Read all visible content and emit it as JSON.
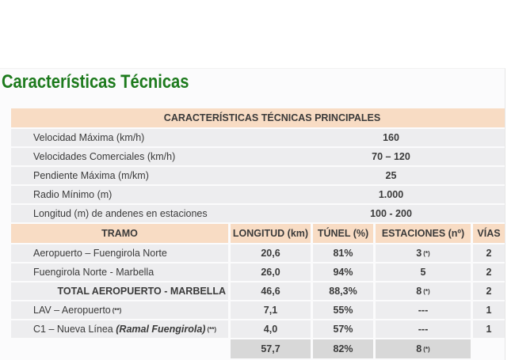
{
  "page": {
    "title": "Características Técnicas"
  },
  "colors": {
    "title_green": "#1d7a1d",
    "header_peach": "#f8dcc4",
    "row_gray": "#ededef",
    "total_gray": "#d8d8d8",
    "text": "#3a3a3a"
  },
  "table": {
    "main_header": "CARACTERÍSTICAS TÉCNICAS PRINCIPALES",
    "specs": [
      {
        "label": "Velocidad Máxima (km/h)",
        "value": "160"
      },
      {
        "label": "Velocidades Comerciales (km/h)",
        "value": "70 – 120"
      },
      {
        "label": "Pendiente Máxima (m/km)",
        "value": "25"
      },
      {
        "label": "Radio Mínimo (m)",
        "value": "1.000"
      },
      {
        "label": "Longitud (m) de andenes en estaciones",
        "value": "100 - 200"
      }
    ],
    "columns": {
      "tramo": "TRAMO",
      "longitud": "LONGITUD (km)",
      "tunel": "TÚNEL (%)",
      "estaciones": "ESTACIONES (nº)",
      "vias": "VÍAS"
    },
    "rows": [
      {
        "tramo": "Aeropuerto – Fuengirola Norte",
        "longitud": "20,6",
        "tunel": "81%",
        "estaciones": "3",
        "estaciones_sup": "(*)",
        "vias": "2"
      },
      {
        "tramo": "Fuengirola Norte - Marbella",
        "longitud": "26,0",
        "tunel": "94%",
        "estaciones": "5",
        "vias": "2"
      },
      {
        "tramo": "TOTAL AEROPUERTO - MARBELLA",
        "longitud": "46,6",
        "tunel": "88,3%",
        "estaciones": "8",
        "estaciones_sup": "(*)",
        "vias": "2"
      },
      {
        "tramo": "LAV – Aeropuerto",
        "tramo_sup": "(**)",
        "longitud": "7,1",
        "tunel": "55%",
        "estaciones": "---",
        "vias": "1"
      },
      {
        "tramo": "C1 – Nueva Línea ",
        "tramo_italic": "(Ramal Fuengirola)",
        "tramo_sup": "(**)",
        "longitud": "4,0",
        "tunel": "57%",
        "estaciones": "---",
        "vias": "1"
      }
    ],
    "total_row": {
      "longitud": "57,7",
      "tunel": "82%",
      "estaciones": "8",
      "estaciones_sup": "(*)"
    }
  }
}
